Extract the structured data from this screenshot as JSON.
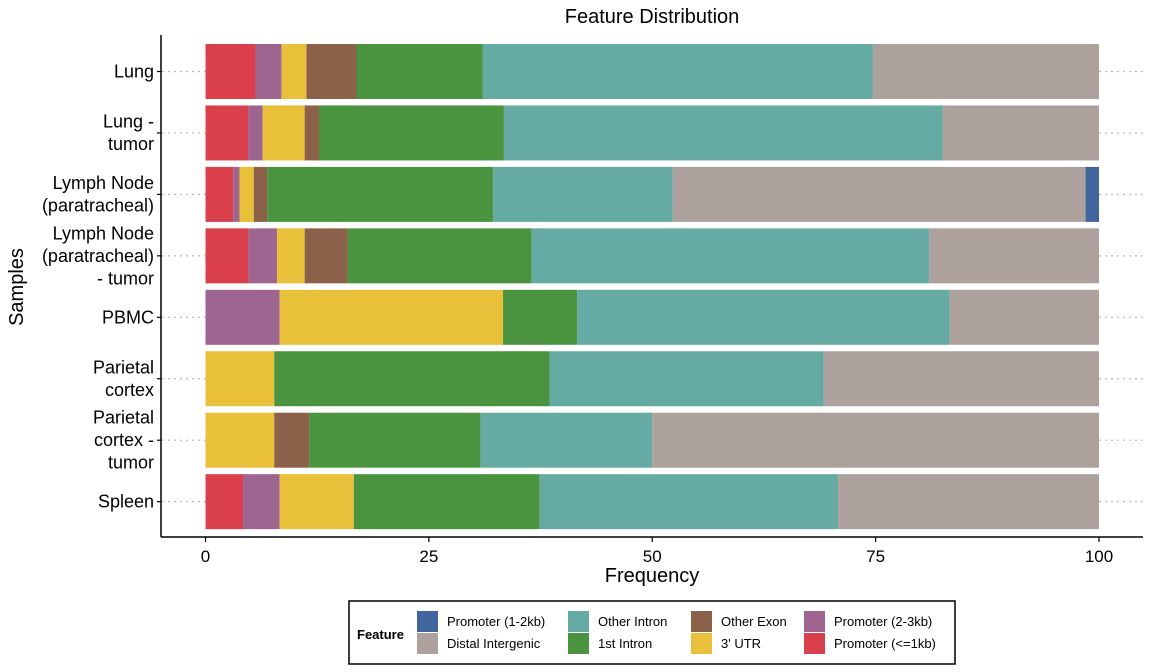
{
  "chart_data": {
    "type": "bar",
    "orientation": "horizontal",
    "stacked": true,
    "title": "Feature Distribution",
    "xlabel": "Frequency",
    "ylabel": "Samples",
    "xlim": [
      0,
      100
    ],
    "xticks": [
      0,
      25,
      50,
      75,
      100
    ],
    "grid": false,
    "legend_position": "bottom",
    "legend_title": "Feature",
    "categories": [
      [
        "Lung"
      ],
      [
        "Lung -",
        "tumor"
      ],
      [
        "Lymph Node",
        "(paratracheal)"
      ],
      [
        "Lymph Node",
        "(paratracheal)",
        "- tumor"
      ],
      [
        "PBMC"
      ],
      [
        "Parietal",
        "cortex"
      ],
      [
        "Parietal",
        "cortex -",
        "tumor"
      ],
      [
        "Spleen"
      ]
    ],
    "stack_order": [
      "Promoter (<=1kb)",
      "Promoter (2-3kb)",
      "3' UTR",
      "Other Exon",
      "1st Intron",
      "Other Intron",
      "Distal Intergenic",
      "Promoter (1-2kb)"
    ],
    "series": [
      {
        "name": "Promoter (<=1kb)",
        "color": "#d9404b",
        "values": [
          5.6,
          4.8,
          3.1,
          4.8,
          0,
          0,
          0,
          4.2
        ]
      },
      {
        "name": "Promoter (2-3kb)",
        "color": "#9e6590",
        "values": [
          2.9,
          1.6,
          0.7,
          3.2,
          8.3,
          0,
          0,
          4.1
        ]
      },
      {
        "name": "3' UTR",
        "color": "#e8c03a",
        "values": [
          2.8,
          4.7,
          1.6,
          3.1,
          25.0,
          7.7,
          7.7,
          8.3
        ]
      },
      {
        "name": "Other Exon",
        "color": "#8c6149",
        "values": [
          5.6,
          1.6,
          1.5,
          4.8,
          0,
          0,
          3.9,
          0
        ]
      },
      {
        "name": "1st Intron",
        "color": "#4a9440",
        "values": [
          14.1,
          20.7,
          25.3,
          20.6,
          8.3,
          30.8,
          19.2,
          20.8
        ]
      },
      {
        "name": "Other Intron",
        "color": "#66aba3",
        "values": [
          43.7,
          49.1,
          20.1,
          44.5,
          41.7,
          30.7,
          19.2,
          33.4
        ]
      },
      {
        "name": "Distal Intergenic",
        "color": "#aca19c",
        "values": [
          25.3,
          17.5,
          46.2,
          19.0,
          16.7,
          30.8,
          50.0,
          29.2
        ]
      },
      {
        "name": "Promoter (1-2kb)",
        "color": "#41669e",
        "values": [
          0,
          0,
          1.5,
          0,
          0,
          0,
          0,
          0
        ]
      }
    ],
    "legend_entries": [
      [
        "Promoter (1-2kb)",
        "Other Intron",
        "Other Exon",
        "Promoter (2-3kb)"
      ],
      [
        "Distal Intergenic",
        "1st Intron",
        "3' UTR",
        "Promoter (<=1kb)"
      ]
    ]
  }
}
